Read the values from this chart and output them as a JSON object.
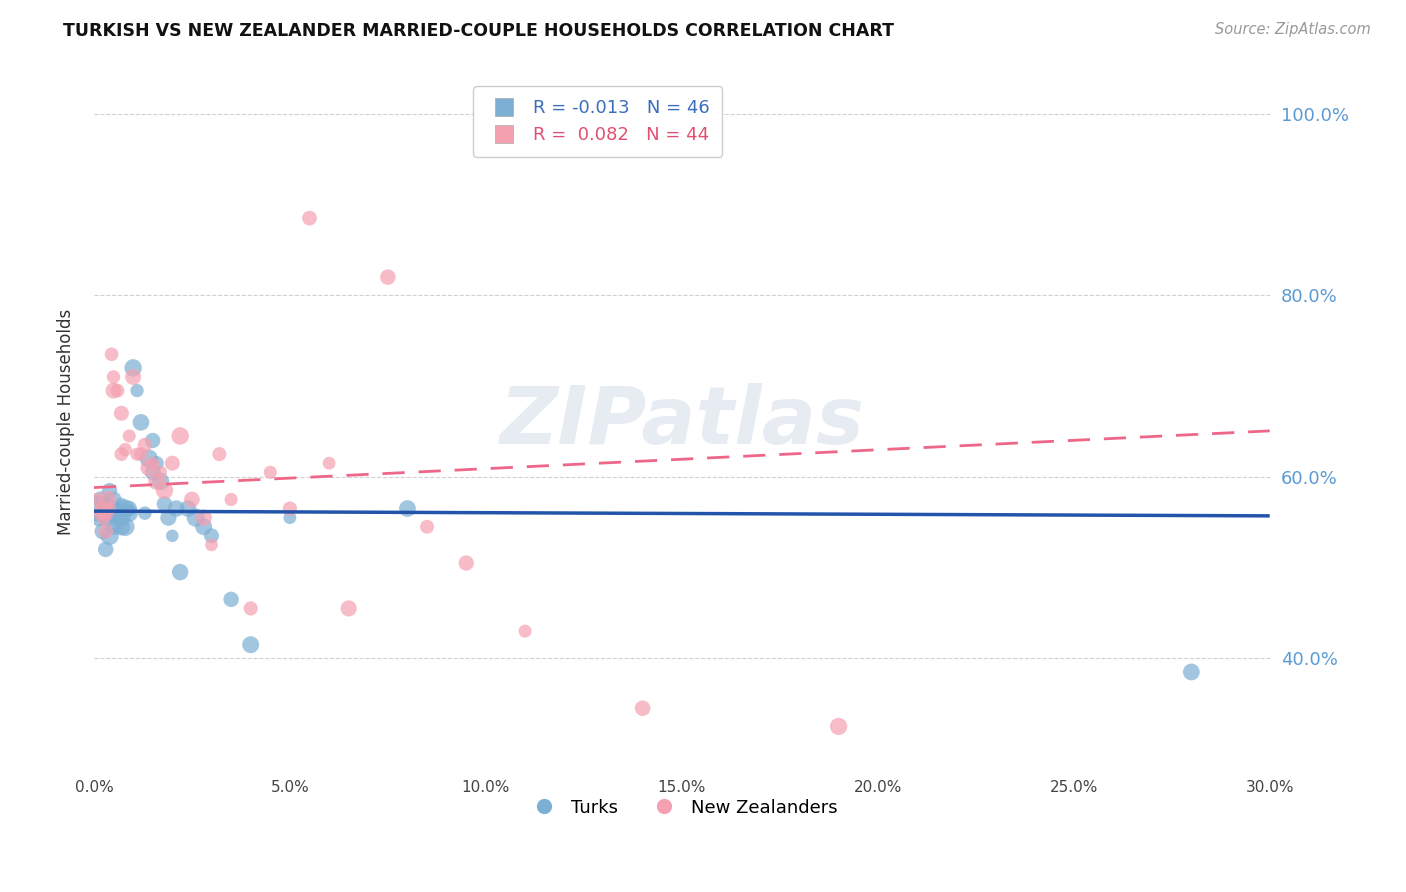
{
  "title": "TURKISH VS NEW ZEALANDER MARRIED-COUPLE HOUSEHOLDS CORRELATION CHART",
  "source": "Source: ZipAtlas.com",
  "ylabel": "Married-couple Households",
  "xlim": [
    0.0,
    0.3
  ],
  "ylim": [
    0.28,
    1.04
  ],
  "yticks": [
    0.4,
    0.6,
    0.8,
    1.0
  ],
  "xticks": [
    0.0,
    0.05,
    0.1,
    0.15,
    0.2,
    0.25,
    0.3
  ],
  "R_turks": -0.013,
  "N_turks": 46,
  "R_nz": 0.082,
  "N_nz": 44,
  "blue_color": "#7BAFD4",
  "pink_color": "#F4A0B0",
  "line_blue": "#2255AA",
  "line_pink": "#EE6688",
  "watermark": "ZIPatlas",
  "background_color": "#FFFFFF",
  "turks_x": [
    0.0008,
    0.0012,
    0.0018,
    0.0022,
    0.0028,
    0.003,
    0.003,
    0.0035,
    0.004,
    0.004,
    0.0045,
    0.005,
    0.005,
    0.005,
    0.006,
    0.006,
    0.007,
    0.007,
    0.007,
    0.008,
    0.008,
    0.009,
    0.009,
    0.01,
    0.011,
    0.012,
    0.013,
    0.014,
    0.015,
    0.015,
    0.016,
    0.017,
    0.018,
    0.019,
    0.02,
    0.021,
    0.022,
    0.024,
    0.026,
    0.028,
    0.03,
    0.035,
    0.04,
    0.05,
    0.08,
    0.28
  ],
  "turks_y": [
    0.565,
    0.555,
    0.575,
    0.54,
    0.56,
    0.57,
    0.52,
    0.555,
    0.535,
    0.585,
    0.56,
    0.575,
    0.545,
    0.56,
    0.565,
    0.56,
    0.57,
    0.555,
    0.545,
    0.565,
    0.545,
    0.56,
    0.565,
    0.72,
    0.695,
    0.66,
    0.56,
    0.62,
    0.605,
    0.64,
    0.615,
    0.595,
    0.57,
    0.555,
    0.535,
    0.565,
    0.495,
    0.565,
    0.555,
    0.545,
    0.535,
    0.465,
    0.415,
    0.555,
    0.565,
    0.385
  ],
  "nz_x": [
    0.0008,
    0.0015,
    0.002,
    0.0025,
    0.003,
    0.003,
    0.0035,
    0.004,
    0.0045,
    0.005,
    0.005,
    0.006,
    0.007,
    0.007,
    0.008,
    0.009,
    0.01,
    0.011,
    0.012,
    0.013,
    0.014,
    0.015,
    0.016,
    0.017,
    0.018,
    0.02,
    0.022,
    0.025,
    0.028,
    0.03,
    0.032,
    0.035,
    0.04,
    0.045,
    0.05,
    0.055,
    0.06,
    0.065,
    0.075,
    0.085,
    0.095,
    0.11,
    0.14,
    0.19
  ],
  "nz_y": [
    0.575,
    0.56,
    0.565,
    0.555,
    0.56,
    0.54,
    0.575,
    0.565,
    0.735,
    0.71,
    0.695,
    0.695,
    0.67,
    0.625,
    0.63,
    0.645,
    0.71,
    0.625,
    0.625,
    0.635,
    0.61,
    0.615,
    0.595,
    0.605,
    0.585,
    0.615,
    0.645,
    0.575,
    0.555,
    0.525,
    0.625,
    0.575,
    0.455,
    0.605,
    0.565,
    0.885,
    0.615,
    0.455,
    0.82,
    0.545,
    0.505,
    0.43,
    0.345,
    0.325
  ]
}
